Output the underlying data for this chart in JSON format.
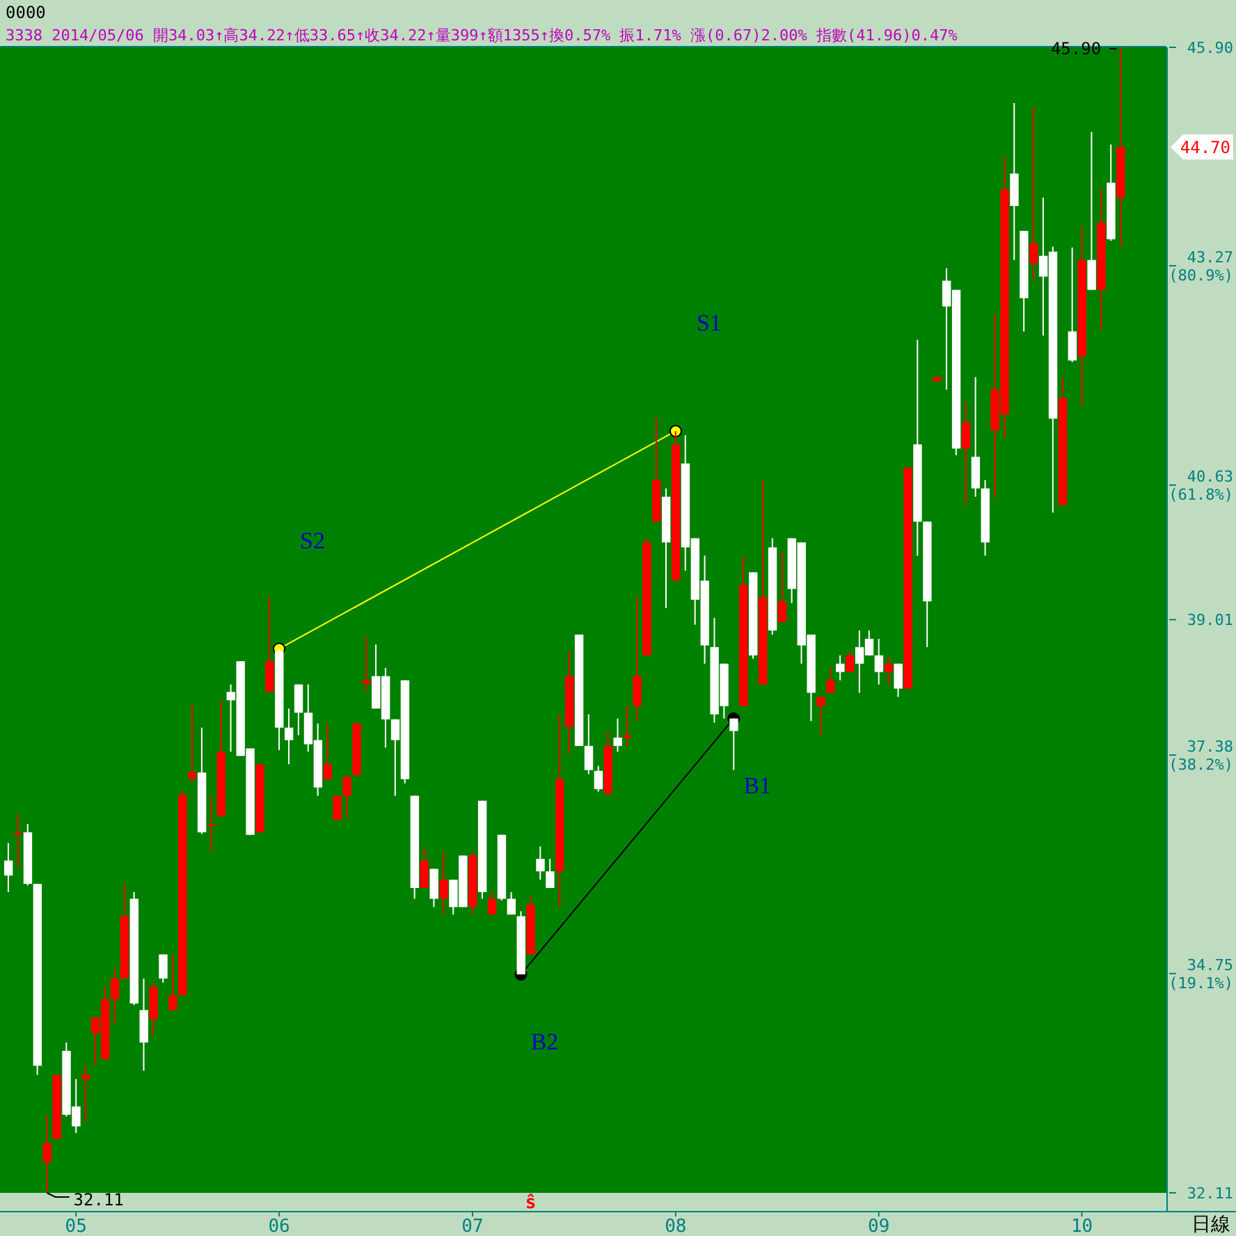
{
  "chart_data": {
    "type": "candlestick",
    "title": "0000",
    "subtitle": "3338 2014/05/06 開34.03↑高34.22↑低33.65↑收34.22↑量399↑額1355↑換0.57% 振1.71% 漲(0.67)2.00% 指數(41.96)0.47%",
    "xlabel": "日線",
    "categories": [
      null,
      null,
      null,
      null,
      null,
      null,
      null,
      "05",
      null,
      null,
      null,
      null,
      null,
      null,
      null,
      null,
      null,
      null,
      null,
      null,
      null,
      null,
      null,
      null,
      null,
      null,
      null,
      null,
      "06",
      null,
      null,
      null,
      null,
      null,
      null,
      null,
      null,
      null,
      null,
      null,
      null,
      null,
      null,
      null,
      null,
      null,
      null,
      null,
      "07",
      null,
      null,
      null,
      null,
      null,
      null,
      null,
      null,
      null,
      null,
      null,
      null,
      null,
      null,
      null,
      null,
      null,
      null,
      null,
      null,
      "08",
      null,
      null,
      null,
      null,
      null,
      null,
      null,
      null,
      null,
      null,
      null,
      null,
      null,
      null,
      null,
      null,
      null,
      null,
      null,
      null,
      "09",
      null,
      null,
      null,
      null,
      null,
      null,
      null,
      null,
      null,
      null,
      null,
      null,
      null,
      null,
      null,
      null,
      null,
      null,
      null,
      null,
      "10",
      null,
      null,
      null,
      null
    ],
    "ohlc": [
      [
        36.11,
        36.32,
        35.73,
        35.93
      ],
      [
        36.43,
        36.67,
        36.03,
        36.45
      ],
      [
        36.45,
        36.55,
        35.81,
        35.83
      ],
      [
        35.83,
        35.83,
        33.53,
        33.64
      ],
      [
        32.48,
        33.05,
        32.11,
        32.71
      ],
      [
        32.76,
        33.53,
        32.76,
        33.53
      ],
      [
        33.82,
        33.92,
        33.03,
        33.05
      ],
      [
        33.15,
        33.48,
        32.83,
        32.91
      ],
      [
        33.48,
        33.64,
        32.96,
        33.53
      ],
      [
        34.03,
        34.22,
        33.65,
        34.22
      ],
      [
        33.72,
        34.59,
        33.72,
        34.44
      ],
      [
        34.44,
        34.81,
        34.15,
        34.69
      ],
      [
        34.69,
        35.83,
        34.69,
        35.44
      ],
      [
        35.65,
        35.73,
        34.37,
        34.39
      ],
      [
        34.31,
        34.69,
        33.58,
        33.92
      ],
      [
        34.2,
        34.64,
        34.0,
        34.59
      ],
      [
        34.98,
        34.98,
        34.64,
        34.69
      ],
      [
        34.31,
        34.98,
        34.31,
        34.49
      ],
      [
        34.49,
        36.95,
        34.49,
        36.9
      ],
      [
        37.1,
        37.99,
        37.04,
        37.17
      ],
      [
        37.17,
        37.71,
        36.43,
        36.45
      ],
      [
        36.53,
        36.89,
        36.22,
        36.55
      ],
      [
        36.65,
        38.04,
        36.62,
        37.42
      ],
      [
        38.14,
        38.23,
        37.42,
        38.04
      ],
      [
        38.51,
        38.51,
        37.37,
        37.37
      ],
      [
        37.46,
        37.46,
        36.42,
        36.42
      ],
      [
        36.45,
        37.27,
        36.45,
        37.27
      ],
      [
        38.14,
        39.28,
        38.14,
        38.51
      ],
      [
        38.63,
        38.66,
        37.44,
        37.71
      ],
      [
        37.71,
        37.94,
        37.27,
        37.56
      ],
      [
        38.23,
        38.23,
        37.62,
        37.89
      ],
      [
        37.89,
        38.23,
        37.42,
        37.51
      ],
      [
        37.56,
        37.76,
        36.89,
        36.99
      ],
      [
        37.09,
        37.76,
        37.09,
        37.27
      ],
      [
        36.6,
        36.89,
        36.6,
        36.89
      ],
      [
        36.89,
        37.12,
        36.62,
        37.12
      ],
      [
        37.14,
        37.76,
        37.14,
        37.76
      ],
      [
        38.24,
        38.81,
        38.14,
        38.28
      ],
      [
        38.33,
        38.71,
        37.94,
        37.94
      ],
      [
        38.33,
        38.43,
        37.47,
        37.81
      ],
      [
        37.81,
        37.81,
        36.89,
        37.56
      ],
      [
        38.28,
        38.28,
        37.04,
        37.09
      ],
      [
        36.89,
        36.89,
        35.65,
        35.78
      ],
      [
        35.78,
        36.27,
        35.78,
        36.11
      ],
      [
        36.01,
        36.01,
        35.55,
        35.65
      ],
      [
        35.65,
        36.22,
        35.46,
        35.88
      ],
      [
        35.88,
        35.88,
        35.46,
        35.55
      ],
      [
        36.17,
        36.17,
        35.55,
        35.55
      ],
      [
        35.55,
        36.22,
        35.46,
        36.17
      ],
      [
        36.83,
        36.83,
        35.65,
        35.73
      ],
      [
        35.46,
        35.73,
        35.46,
        35.65
      ],
      [
        36.42,
        36.42,
        35.63,
        35.65
      ],
      [
        35.65,
        35.73,
        35.46,
        35.46
      ],
      [
        35.44,
        35.5,
        34.74,
        34.74
      ],
      [
        34.98,
        35.68,
        34.98,
        35.58
      ],
      [
        36.13,
        36.28,
        35.88,
        35.98
      ],
      [
        35.98,
        36.13,
        35.78,
        35.78
      ],
      [
        35.98,
        37.87,
        35.55,
        37.09
      ],
      [
        37.72,
        38.63,
        37.4,
        38.33
      ],
      [
        38.83,
        38.83,
        37.49,
        37.49
      ],
      [
        37.49,
        37.87,
        37.15,
        37.2
      ],
      [
        37.19,
        37.25,
        36.94,
        36.97
      ],
      [
        36.92,
        37.67,
        36.89,
        37.49
      ],
      [
        37.59,
        37.82,
        37.42,
        37.49
      ],
      [
        37.59,
        37.97,
        37.49,
        37.62
      ],
      [
        37.97,
        39.28,
        37.79,
        38.33
      ],
      [
        38.58,
        39.99,
        38.58,
        39.94
      ],
      [
        40.19,
        41.44,
        40.19,
        40.69
      ],
      [
        40.49,
        40.59,
        39.15,
        39.94
      ],
      [
        39.48,
        41.28,
        39.48,
        41.12
      ],
      [
        40.89,
        41.23,
        39.6,
        39.88
      ],
      [
        39.99,
        39.99,
        38.95,
        39.25
      ],
      [
        39.48,
        39.78,
        38.48,
        38.7
      ],
      [
        38.68,
        39.03,
        37.77,
        37.87
      ],
      [
        38.48,
        38.48,
        37.82,
        37.97
      ],
      [
        37.82,
        37.82,
        37.2,
        37.67
      ],
      [
        37.97,
        39.78,
        37.97,
        39.43
      ],
      [
        39.58,
        39.58,
        38.54,
        38.58
      ],
      [
        38.23,
        40.69,
        38.23,
        39.28
      ],
      [
        39.88,
        39.99,
        38.83,
        38.88
      ],
      [
        38.98,
        39.83,
        38.98,
        39.23
      ],
      [
        39.99,
        39.99,
        39.21,
        39.38
      ],
      [
        39.94,
        39.94,
        38.48,
        38.7
      ],
      [
        38.83,
        38.83,
        37.79,
        38.13
      ],
      [
        37.97,
        38.08,
        37.61,
        38.08
      ],
      [
        38.13,
        38.43,
        38.13,
        38.28
      ],
      [
        38.48,
        38.58,
        38.28,
        38.38
      ],
      [
        38.38,
        38.63,
        38.38,
        38.58
      ],
      [
        38.68,
        38.88,
        38.13,
        38.48
      ],
      [
        38.78,
        38.88,
        38.58,
        38.58
      ],
      [
        38.58,
        38.78,
        38.23,
        38.38
      ],
      [
        38.38,
        38.56,
        38.23,
        38.48
      ],
      [
        38.48,
        38.48,
        38.08,
        38.18
      ],
      [
        38.18,
        40.84,
        38.18,
        40.84
      ],
      [
        41.12,
        42.38,
        39.78,
        40.19
      ],
      [
        40.19,
        40.19,
        38.68,
        39.23
      ],
      [
        41.88,
        41.93,
        41.88,
        41.93
      ],
      [
        43.09,
        43.24,
        41.78,
        42.78
      ],
      [
        42.98,
        42.98,
        40.99,
        41.07
      ],
      [
        41.07,
        41.63,
        40.39,
        41.38
      ],
      [
        40.97,
        41.93,
        40.49,
        40.59
      ],
      [
        40.59,
        40.69,
        39.78,
        39.94
      ],
      [
        41.29,
        42.68,
        40.49,
        41.78
      ],
      [
        41.48,
        44.58,
        41.19,
        44.19
      ],
      [
        44.38,
        45.23,
        43.34,
        43.99
      ],
      [
        43.69,
        43.69,
        42.48,
        42.88
      ],
      [
        43.3,
        45.18,
        43.09,
        43.54
      ],
      [
        43.39,
        44.09,
        42.43,
        43.14
      ],
      [
        43.44,
        43.5,
        40.3,
        41.43
      ],
      [
        40.39,
        41.93,
        40.39,
        41.68
      ],
      [
        42.48,
        43.49,
        42.11,
        42.13
      ],
      [
        42.18,
        43.74,
        41.59,
        43.34
      ],
      [
        43.34,
        44.88,
        42.98,
        42.98
      ],
      [
        42.98,
        44.19,
        42.5,
        43.79
      ],
      [
        44.27,
        44.73,
        43.57,
        43.59
      ],
      [
        44.09,
        45.9,
        43.5,
        44.7
      ]
    ],
    "series": [
      {
        "type": "line",
        "color": "#ffff00",
        "marker": "circle",
        "values": [
          null,
          null,
          null,
          null,
          null,
          null,
          null,
          null,
          null,
          null,
          null,
          null,
          null,
          null,
          null,
          null,
          null,
          null,
          null,
          null,
          null,
          null,
          null,
          null,
          null,
          null,
          null,
          null,
          38.66,
          null,
          null,
          null,
          null,
          null,
          null,
          null,
          null,
          null,
          null,
          null,
          null,
          null,
          null,
          null,
          null,
          null,
          null,
          null,
          null,
          null,
          null,
          null,
          null,
          null,
          null,
          null,
          null,
          null,
          null,
          null,
          null,
          null,
          null,
          null,
          null,
          null,
          null,
          null,
          null,
          41.28,
          null,
          null,
          null,
          null,
          null,
          null,
          null,
          null,
          null,
          null,
          null,
          null,
          null,
          null,
          null,
          null,
          null,
          null,
          null,
          null,
          null,
          null,
          null,
          null,
          null,
          null,
          null,
          null,
          null,
          null,
          null,
          null,
          null,
          null,
          null,
          null,
          null,
          null,
          null,
          null,
          null,
          null,
          null,
          null,
          null,
          null
        ]
      },
      {
        "type": "line",
        "color": "#000000",
        "marker": "circle",
        "values": [
          null,
          null,
          null,
          null,
          null,
          null,
          null,
          null,
          null,
          null,
          null,
          null,
          null,
          null,
          null,
          null,
          null,
          null,
          null,
          null,
          null,
          null,
          null,
          null,
          null,
          null,
          null,
          null,
          null,
          null,
          null,
          null,
          null,
          null,
          null,
          null,
          null,
          null,
          null,
          null,
          null,
          null,
          null,
          null,
          null,
          null,
          null,
          null,
          null,
          null,
          null,
          null,
          null,
          34.74,
          null,
          null,
          null,
          null,
          null,
          null,
          null,
          null,
          null,
          null,
          null,
          null,
          null,
          null,
          null,
          null,
          null,
          null,
          null,
          null,
          null,
          37.82,
          null,
          null,
          null,
          null,
          null,
          null,
          null,
          null,
          null,
          null,
          null,
          null,
          null,
          null,
          null,
          null,
          null,
          null,
          null,
          null,
          null,
          null,
          null,
          null,
          null,
          null,
          null,
          null,
          null,
          null,
          null,
          null,
          null,
          null,
          null,
          null,
          null,
          null,
          null,
          null
        ]
      }
    ],
    "ylim": [
      32.11,
      45.9
    ],
    "yticks": [
      {
        "value": 45.9,
        "label": "45.90"
      },
      {
        "value": 43.27,
        "label": "43.27\n(80.9%)"
      },
      {
        "value": 40.63,
        "label": "40.63\n(61.8%)"
      },
      {
        "value": 39.01,
        "label": "39.01"
      },
      {
        "value": 37.38,
        "label": "37.38\n(38.2%)"
      },
      {
        "value": 34.75,
        "label": "34.75\n(19.1%)"
      },
      {
        "value": 32.11,
        "label": "32.11"
      }
    ],
    "annotations": [
      "S2",
      "S1",
      "B2",
      "B1",
      "45.90",
      "32.11",
      "44.70",
      "ŝ"
    ]
  }
}
